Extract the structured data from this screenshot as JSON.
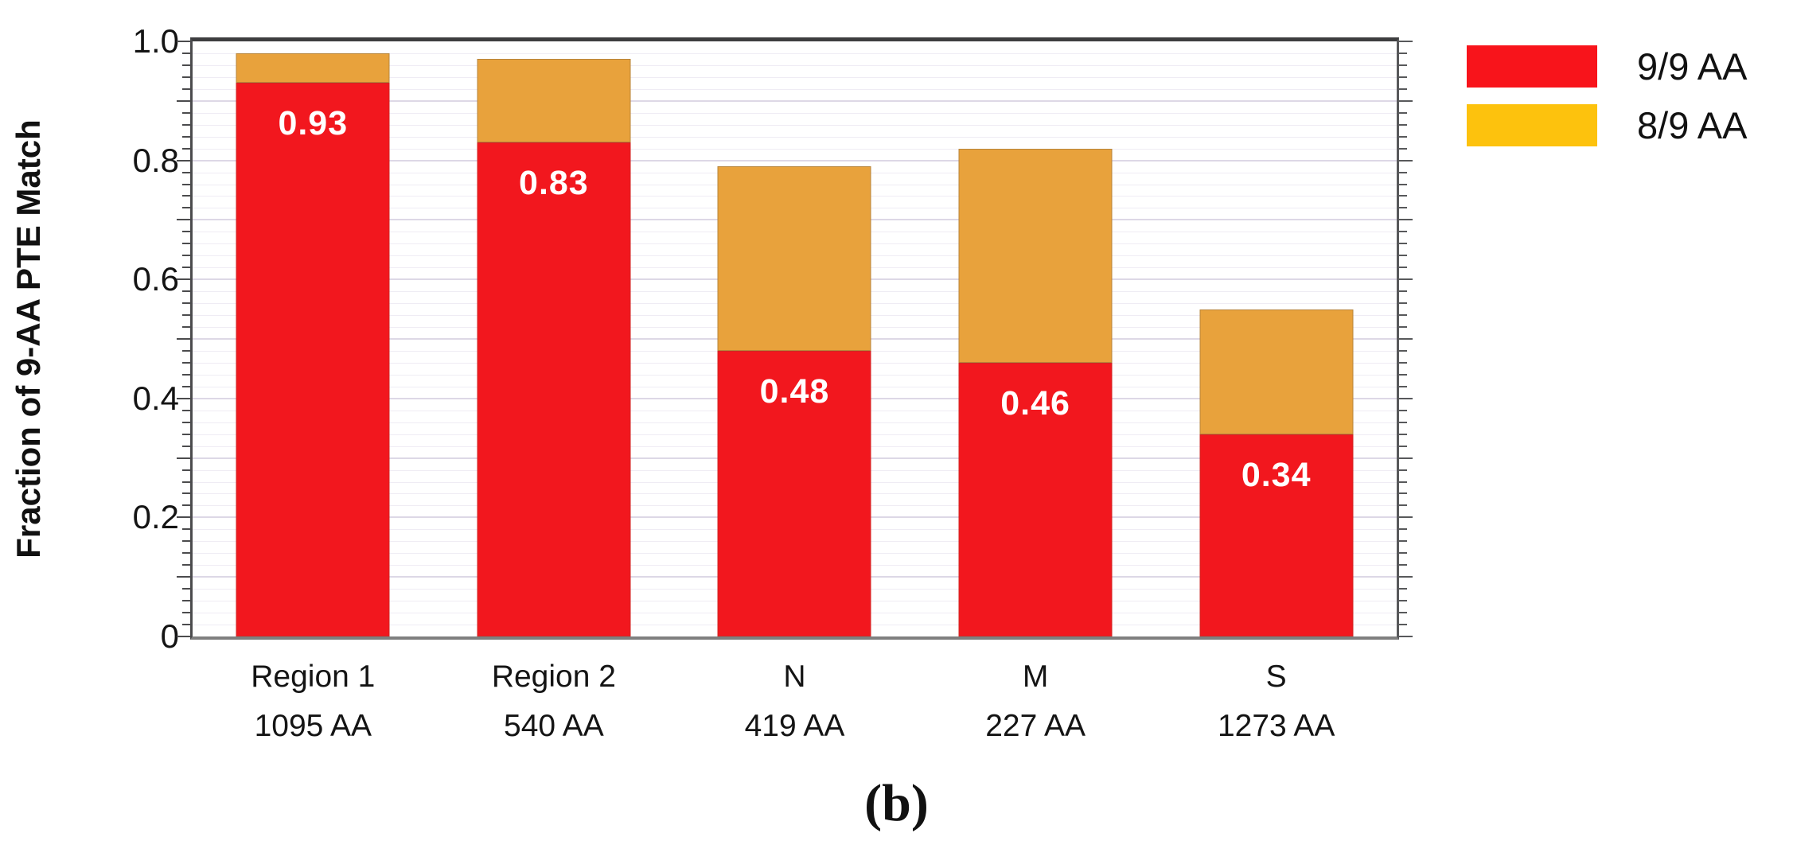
{
  "caption": "(b)",
  "colors": {
    "series_red": "#F2171E",
    "series_orange_bar": "#E8A23C",
    "legend_yellow": "#FDC20D",
    "bar_label_text": "#FFFFFF",
    "frame": "#3D3D3F",
    "baseline": "#7F7F7F",
    "grid_minor": "#EFECF4",
    "grid_major": "#DDD8E6"
  },
  "chart_data": {
    "type": "bar",
    "stacked": true,
    "title": "",
    "xlabel": "",
    "ylabel": "Fraction of 9-AA PTE Match",
    "ylim": [
      0,
      1.0
    ],
    "minor_tick_step": 0.02,
    "major_tick_step": 0.1,
    "grid": "horizontal lavender gridlines at minor (0.02) and major (0.1) steps",
    "frame": "boxed plot with outward ticks on left and right axes",
    "legend_position": "outside upper-right",
    "ytick_labels": [
      {
        "value": 0,
        "label": "0"
      },
      {
        "value": 0.2,
        "label": "0.2"
      },
      {
        "value": 0.4,
        "label": "0.4"
      },
      {
        "value": 0.6,
        "label": "0.6"
      },
      {
        "value": 0.8,
        "label": "0.8"
      },
      {
        "value": 1.0,
        "label": "1.0"
      }
    ],
    "categories": [
      {
        "label": "Region 1",
        "sublabel": "1095 AA"
      },
      {
        "label": "Region 2",
        "sublabel": "540 AA"
      },
      {
        "label": "N",
        "sublabel": "419 AA"
      },
      {
        "label": "M",
        "sublabel": "227 AA"
      },
      {
        "label": "S",
        "sublabel": "1273 AA"
      }
    ],
    "series": [
      {
        "name": "9/9 AA",
        "bar_color": "#F2171E",
        "legend_color": "#F8141B",
        "values": [
          0.93,
          0.83,
          0.48,
          0.46,
          0.34
        ],
        "bar_labels": [
          "0.93",
          "0.83",
          "0.48",
          "0.46",
          "0.34"
        ]
      },
      {
        "name": "8/9 AA",
        "bar_color": "#E8A23C",
        "legend_color": "#FDC20D",
        "values": [
          0.05,
          0.14,
          0.31,
          0.36,
          0.21
        ],
        "bar_labels": [
          "",
          "",
          "",
          "",
          ""
        ]
      }
    ],
    "stack_totals": [
      0.98,
      0.97,
      0.79,
      0.82,
      0.55
    ]
  }
}
